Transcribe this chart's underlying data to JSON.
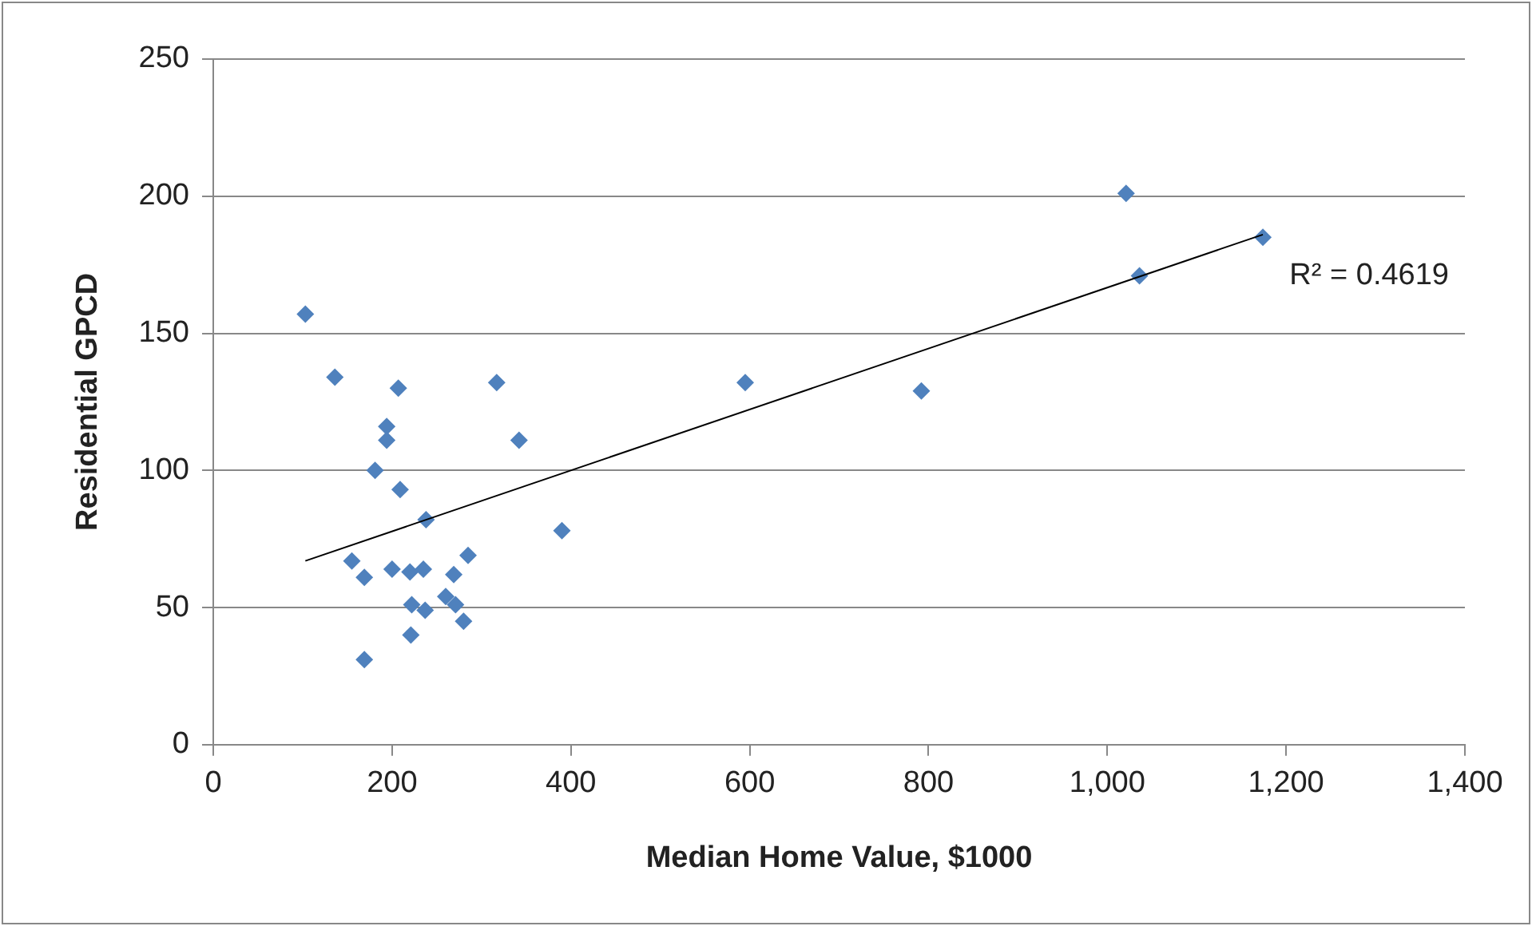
{
  "chart_data": {
    "type": "scatter",
    "xlabel": "Median Home Value, $1000",
    "ylabel": "Residential GPCD",
    "xlim": [
      0,
      1400
    ],
    "xticks": [
      0,
      200,
      400,
      600,
      800,
      {
        "value": 1000,
        "label": "1,000"
      },
      {
        "value": 1200,
        "label": "1,200"
      },
      {
        "value": 1400,
        "label": "1,400"
      }
    ],
    "ylim": [
      0,
      250
    ],
    "yticks": [
      0,
      50,
      100,
      150,
      200,
      250
    ],
    "grid": "y",
    "legend": false,
    "marker": "diamond",
    "annotations": [
      "R² = 0.4619"
    ],
    "series": [
      {
        "color": "#4f81bd",
        "x": [
          103,
          136,
          207,
          317,
          595,
          792,
          194,
          194,
          342,
          181,
          209,
          238,
          390,
          155,
          285,
          169,
          200,
          220,
          235,
          269,
          222,
          237,
          260,
          271,
          280,
          221,
          169,
          1021,
          1036,
          1174
        ],
        "values": [
          157,
          134,
          130,
          132,
          132,
          129,
          116,
          111,
          111,
          100,
          93,
          82,
          78,
          67,
          69,
          61,
          64,
          63,
          64,
          62,
          51,
          49,
          54,
          51,
          45,
          40,
          31,
          201,
          171,
          185
        ]
      },
      {
        "type": "line",
        "color": "#000000",
        "marker": "none",
        "x": [
          103,
          1174
        ],
        "values": [
          67,
          186
        ]
      }
    ]
  }
}
